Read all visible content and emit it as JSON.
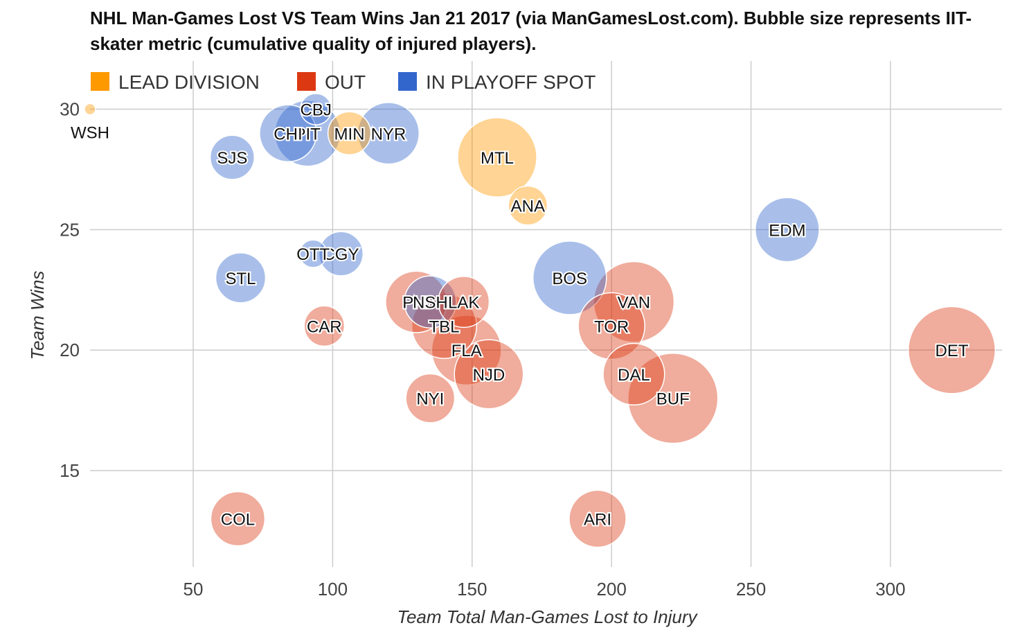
{
  "title": "NHL Man-Games Lost VS Team Wins Jan 21 2017 (via ManGamesLost.com). Bubble size represents IIT-skater metric (cumulative quality of injured players).",
  "chart_data": {
    "type": "scatter",
    "subtype": "bubble",
    "title": "NHL Man-Games Lost VS Team Wins Jan 21 2017 (via ManGamesLost.com). Bubble size represents IIT-skater metric (cumulative quality of injured players).",
    "xlabel": "Team Total Man-Games Lost to Injury",
    "ylabel": "Team Wins",
    "xlim": [
      13,
      340
    ],
    "ylim": [
      11,
      32
    ],
    "xticks": [
      50,
      100,
      150,
      200,
      250,
      300
    ],
    "yticks": [
      15,
      20,
      25,
      30
    ],
    "grid": true,
    "legend_position": "top-left",
    "colors": {
      "LEAD DIVISION": "#ff9900",
      "OUT": "#dc3912",
      "IN PLAYOFF SPOT": "#3366cc"
    },
    "series": [
      {
        "name": "LEAD DIVISION",
        "points": [
          {
            "label": "WSH",
            "x": 13,
            "y": 30,
            "size": 0.4
          },
          {
            "label": "MIN",
            "x": 106,
            "y": 29,
            "size": 17
          },
          {
            "label": "MTL",
            "x": 159,
            "y": 28,
            "size": 58
          },
          {
            "label": "ANA",
            "x": 170,
            "y": 26,
            "size": 14
          }
        ]
      },
      {
        "name": "OUT",
        "points": [
          {
            "label": "CAR",
            "x": 97,
            "y": 21,
            "size": 15
          },
          {
            "label": "COL",
            "x": 66,
            "y": 13,
            "size": 27
          },
          {
            "label": "NYI",
            "x": 135,
            "y": 18,
            "size": 22
          },
          {
            "label": "NJD",
            "x": 156,
            "y": 19,
            "size": 44
          },
          {
            "label": "FLA",
            "x": 148,
            "y": 20,
            "size": 45
          },
          {
            "label": "TBL",
            "x": 140,
            "y": 21,
            "size": 39
          },
          {
            "label": "PHI",
            "x": 130,
            "y": 22,
            "size": 35
          },
          {
            "label": "LAK",
            "x": 147,
            "y": 22,
            "size": 24
          },
          {
            "label": "VAN",
            "x": 208,
            "y": 22,
            "size": 60
          },
          {
            "label": "TOR",
            "x": 200,
            "y": 21,
            "size": 41
          },
          {
            "label": "DAL",
            "x": 208,
            "y": 19,
            "size": 35
          },
          {
            "label": "BUF",
            "x": 222,
            "y": 18,
            "size": 75
          },
          {
            "label": "ARI",
            "x": 195,
            "y": 13,
            "size": 30
          },
          {
            "label": "DET",
            "x": 322,
            "y": 20,
            "size": 70
          }
        ]
      },
      {
        "name": "IN PLAYOFF SPOT",
        "points": [
          {
            "label": "CBJ",
            "x": 94,
            "y": 30,
            "size": 9
          },
          {
            "label": "CHI",
            "x": 84,
            "y": 29,
            "size": 30
          },
          {
            "label": "PIT",
            "x": 91,
            "y": 29,
            "size": 40
          },
          {
            "label": "NYR",
            "x": 120,
            "y": 29,
            "size": 35
          },
          {
            "label": "SJS",
            "x": 64,
            "y": 28,
            "size": 18
          },
          {
            "label": "OTT",
            "x": 93,
            "y": 24,
            "size": 7
          },
          {
            "label": "CGY",
            "x": 103,
            "y": 24,
            "size": 18
          },
          {
            "label": "STL",
            "x": 67,
            "y": 23,
            "size": 23
          },
          {
            "label": "NSH",
            "x": 135,
            "y": 22,
            "size": 25
          },
          {
            "label": "BOS",
            "x": 185,
            "y": 23,
            "size": 50
          },
          {
            "label": "EDM",
            "x": 263,
            "y": 25,
            "size": 38
          }
        ]
      }
    ]
  }
}
